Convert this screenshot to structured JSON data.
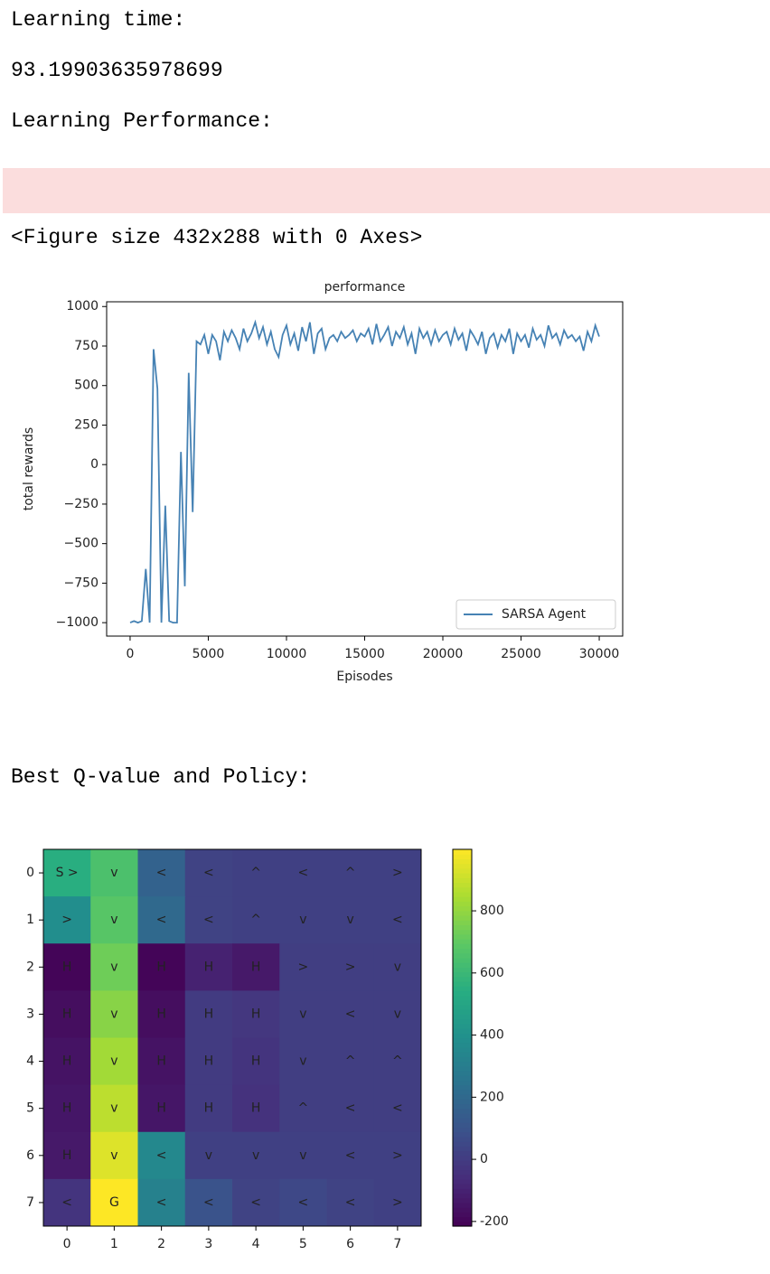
{
  "output": {
    "learning_time_label": "Learning time:",
    "learning_time": 93.19903635978699,
    "performance_label": "Learning Performance:",
    "figure_repr": "<Figure size 432x288 with 0 Axes>",
    "policy_label": "Best Q-value and Policy:"
  },
  "chart_data": [
    {
      "type": "line",
      "title": "performance",
      "xlabel": "Episodes",
      "ylabel": "total rewards",
      "x": [
        0,
        250,
        500,
        750,
        1000,
        1250,
        1500,
        1750,
        2000,
        2250,
        2500,
        2750,
        3000,
        3250,
        3500,
        3750,
        4000,
        4250,
        4500,
        4750,
        5000,
        5250,
        5500,
        5750,
        6000,
        6250,
        6500,
        6750,
        7000,
        7250,
        7500,
        7750,
        8000,
        8250,
        8500,
        8750,
        9000,
        9250,
        9500,
        9750,
        10000,
        10250,
        10500,
        10750,
        11000,
        11250,
        11500,
        11750,
        12000,
        12250,
        12500,
        12750,
        13000,
        13250,
        13500,
        13750,
        14000,
        14250,
        14500,
        14750,
        15000,
        15250,
        15500,
        15750,
        16000,
        16250,
        16500,
        16750,
        17000,
        17250,
        17500,
        17750,
        18000,
        18250,
        18500,
        18750,
        19000,
        19250,
        19500,
        19750,
        20000,
        20250,
        20500,
        20750,
        21000,
        21250,
        21500,
        21750,
        22000,
        22250,
        22500,
        22750,
        23000,
        23250,
        23500,
        23750,
        24000,
        24250,
        24500,
        24750,
        25000,
        25250,
        25500,
        25750,
        26000,
        26250,
        26500,
        26750,
        27000,
        27250,
        27500,
        27750,
        28000,
        28250,
        28500,
        28750,
        29000,
        29250,
        29500,
        29750,
        30000
      ],
      "series": [
        {
          "name": "SARSA Agent",
          "color": "#4682b4",
          "values": [
            -1000,
            -990,
            -1000,
            -990,
            -660,
            -1000,
            730,
            480,
            -1000,
            -260,
            -990,
            -1000,
            -1000,
            80,
            -770,
            580,
            -300,
            780,
            760,
            820,
            700,
            820,
            780,
            660,
            840,
            780,
            850,
            800,
            730,
            860,
            780,
            830,
            900,
            800,
            870,
            760,
            840,
            730,
            680,
            820,
            880,
            760,
            830,
            720,
            870,
            780,
            900,
            700,
            830,
            860,
            730,
            800,
            820,
            780,
            840,
            800,
            820,
            850,
            780,
            830,
            810,
            860,
            760,
            890,
            780,
            820,
            870,
            750,
            840,
            800,
            870,
            760,
            830,
            700,
            860,
            800,
            840,
            760,
            850,
            780,
            820,
            840,
            760,
            860,
            790,
            830,
            720,
            850,
            810,
            760,
            840,
            700,
            800,
            830,
            740,
            820,
            780,
            860,
            700,
            830,
            780,
            820,
            740,
            860,
            790,
            820,
            750,
            880,
            800,
            830,
            760,
            850,
            800,
            820,
            780,
            810,
            720,
            840,
            780,
            880,
            810
          ]
        }
      ],
      "xlim": [
        -1500,
        31500
      ],
      "ylim": [
        -1085,
        1030
      ],
      "xticks": [
        0,
        5000,
        10000,
        15000,
        20000,
        25000,
        30000
      ],
      "yticks": [
        {
          "value": -1000,
          "label": "−1000"
        },
        {
          "value": -750,
          "label": "−750"
        },
        {
          "value": -500,
          "label": "−500"
        },
        {
          "value": -250,
          "label": "−250"
        },
        0,
        250,
        500,
        750,
        1000
      ],
      "legend": "lower right"
    },
    {
      "type": "heatmap",
      "cmap": "viridis",
      "x": [
        0,
        1,
        2,
        3,
        4,
        5,
        6,
        7
      ],
      "y": [
        0,
        1,
        2,
        3,
        4,
        5,
        6,
        7
      ],
      "values": [
        [
          550,
          650,
          170,
          30,
          20,
          20,
          20,
          20
        ],
        [
          380,
          680,
          200,
          30,
          20,
          20,
          20,
          20
        ],
        [
          -200,
          730,
          -200,
          -100,
          -130,
          10,
          10,
          10
        ],
        [
          -170,
          780,
          -170,
          0,
          -20,
          10,
          10,
          10
        ],
        [
          -150,
          830,
          -150,
          0,
          -30,
          10,
          10,
          10
        ],
        [
          -140,
          880,
          -140,
          0,
          -40,
          10,
          10,
          10
        ],
        [
          -130,
          940,
          350,
          20,
          20,
          20,
          20,
          20
        ],
        [
          -30,
          998,
          320,
          100,
          30,
          50,
          30,
          20
        ]
      ],
      "annotations": [
        [
          "S >",
          "v",
          "<",
          "<",
          "^",
          "<",
          "^",
          ">"
        ],
        [
          ">",
          "v",
          "<",
          "<",
          "^",
          "v",
          "v",
          "<"
        ],
        [
          "H",
          "v",
          "H",
          "H",
          "H",
          ">",
          ">",
          "v"
        ],
        [
          "H",
          "v",
          "H",
          "H",
          "H",
          "v",
          "<",
          "v"
        ],
        [
          "H",
          "v",
          "H",
          "H",
          "H",
          "v",
          "^",
          "^"
        ],
        [
          "H",
          "v",
          "H",
          "H",
          "H",
          "^",
          "<",
          "<"
        ],
        [
          "H",
          "v",
          "<",
          "v",
          "v",
          "v",
          "<",
          ">"
        ],
        [
          "<",
          "G",
          "<",
          "<",
          "<",
          "<",
          "<",
          ">"
        ]
      ],
      "clim": [
        -215,
        998
      ],
      "cticks": [
        -200,
        0,
        200,
        400,
        600,
        800
      ]
    }
  ]
}
